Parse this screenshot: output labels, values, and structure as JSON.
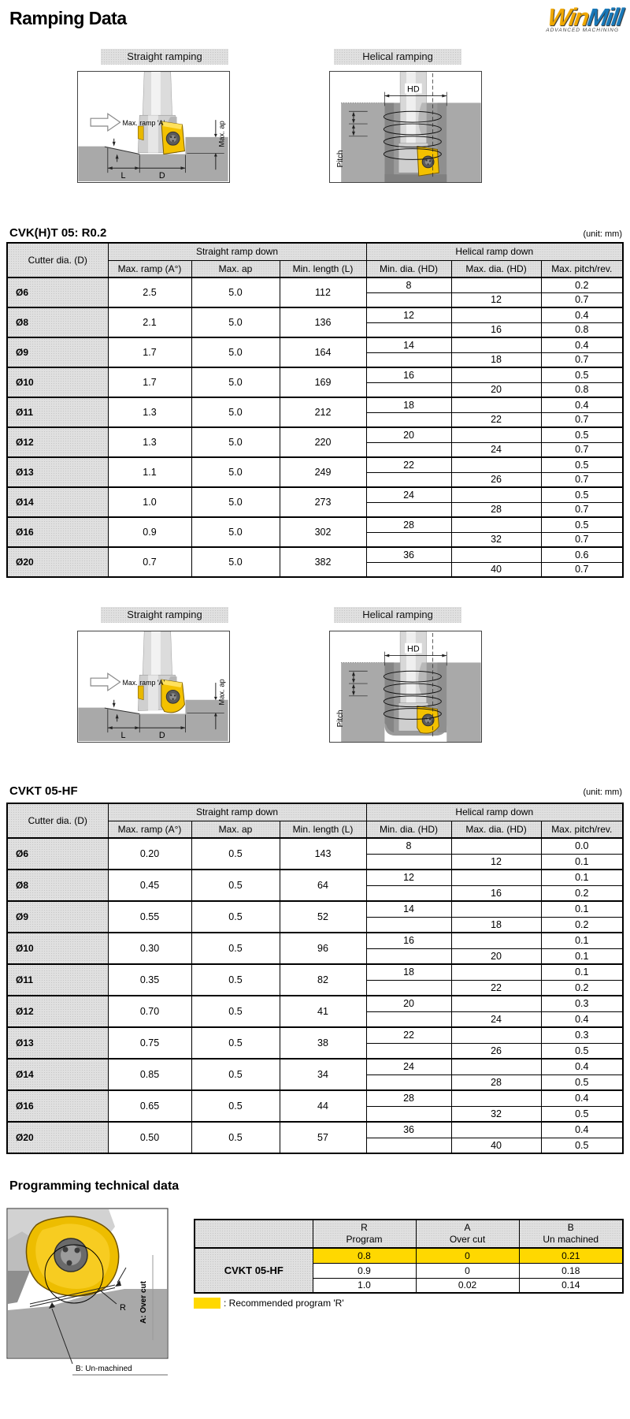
{
  "page": {
    "title": "Ramping Data",
    "logo": {
      "win": "Win",
      "mill": "Mill",
      "tagline": "ADVANCED MACHINING"
    }
  },
  "sections": {
    "straight_label": "Straight ramping",
    "helical_label": "Helical ramping"
  },
  "diagram": {
    "max_ramp": "Max. ramp 'A'",
    "max_ap": "Max. ap",
    "l": "L",
    "d": "D",
    "hd": "HD",
    "pitch": "Pitch"
  },
  "table1": {
    "title": "CVK(H)T 05: R0.2",
    "unit": "(unit: mm)",
    "headers": {
      "cutter_dia": "Cutter dia. (D)",
      "straight_group": "Straight ramp down",
      "helical_group": "Helical ramp down",
      "cols": [
        "Max. ramp (A°)",
        "Max. ap",
        "Min. length (L)",
        "Min. dia. (HD)",
        "Max. dia. (HD)",
        "Max. pitch/rev."
      ]
    },
    "rows": [
      {
        "dia": "Ø6",
        "max_ramp": "2.5",
        "max_ap": "5.0",
        "min_length": "112",
        "min_dia": "8",
        "max_dia": "12",
        "pitch_top": "0.2",
        "pitch_bottom": "0.7"
      },
      {
        "dia": "Ø8",
        "max_ramp": "2.1",
        "max_ap": "5.0",
        "min_length": "136",
        "min_dia": "12",
        "max_dia": "16",
        "pitch_top": "0.4",
        "pitch_bottom": "0.8"
      },
      {
        "dia": "Ø9",
        "max_ramp": "1.7",
        "max_ap": "5.0",
        "min_length": "164",
        "min_dia": "14",
        "max_dia": "18",
        "pitch_top": "0.4",
        "pitch_bottom": "0.7"
      },
      {
        "dia": "Ø10",
        "max_ramp": "1.7",
        "max_ap": "5.0",
        "min_length": "169",
        "min_dia": "16",
        "max_dia": "20",
        "pitch_top": "0.5",
        "pitch_bottom": "0.8"
      },
      {
        "dia": "Ø11",
        "max_ramp": "1.3",
        "max_ap": "5.0",
        "min_length": "212",
        "min_dia": "18",
        "max_dia": "22",
        "pitch_top": "0.4",
        "pitch_bottom": "0.7"
      },
      {
        "dia": "Ø12",
        "max_ramp": "1.3",
        "max_ap": "5.0",
        "min_length": "220",
        "min_dia": "20",
        "max_dia": "24",
        "pitch_top": "0.5",
        "pitch_bottom": "0.7"
      },
      {
        "dia": "Ø13",
        "max_ramp": "1.1",
        "max_ap": "5.0",
        "min_length": "249",
        "min_dia": "22",
        "max_dia": "26",
        "pitch_top": "0.5",
        "pitch_bottom": "0.7"
      },
      {
        "dia": "Ø14",
        "max_ramp": "1.0",
        "max_ap": "5.0",
        "min_length": "273",
        "min_dia": "24",
        "max_dia": "28",
        "pitch_top": "0.5",
        "pitch_bottom": "0.7"
      },
      {
        "dia": "Ø16",
        "max_ramp": "0.9",
        "max_ap": "5.0",
        "min_length": "302",
        "min_dia": "28",
        "max_dia": "32",
        "pitch_top": "0.5",
        "pitch_bottom": "0.7"
      },
      {
        "dia": "Ø20",
        "max_ramp": "0.7",
        "max_ap": "5.0",
        "min_length": "382",
        "min_dia": "36",
        "max_dia": "40",
        "pitch_top": "0.6",
        "pitch_bottom": "0.7"
      }
    ]
  },
  "table2": {
    "title": "CVKT 05-HF",
    "unit": "(unit: mm)",
    "headers": {
      "cutter_dia": "Cutter dia. (D)",
      "straight_group": "Straight ramp down",
      "helical_group": "Helical ramp down",
      "cols": [
        "Max. ramp (A°)",
        "Max. ap",
        "Min. length (L)",
        "Min. dia. (HD)",
        "Max. dia. (HD)",
        "Max. pitch/rev."
      ]
    },
    "rows": [
      {
        "dia": "Ø6",
        "max_ramp": "0.20",
        "max_ap": "0.5",
        "min_length": "143",
        "min_dia": "8",
        "max_dia": "12",
        "pitch_top": "0.0",
        "pitch_bottom": "0.1"
      },
      {
        "dia": "Ø8",
        "max_ramp": "0.45",
        "max_ap": "0.5",
        "min_length": "64",
        "min_dia": "12",
        "max_dia": "16",
        "pitch_top": "0.1",
        "pitch_bottom": "0.2"
      },
      {
        "dia": "Ø9",
        "max_ramp": "0.55",
        "max_ap": "0.5",
        "min_length": "52",
        "min_dia": "14",
        "max_dia": "18",
        "pitch_top": "0.1",
        "pitch_bottom": "0.2"
      },
      {
        "dia": "Ø10",
        "max_ramp": "0.30",
        "max_ap": "0.5",
        "min_length": "96",
        "min_dia": "16",
        "max_dia": "20",
        "pitch_top": "0.1",
        "pitch_bottom": "0.1"
      },
      {
        "dia": "Ø11",
        "max_ramp": "0.35",
        "max_ap": "0.5",
        "min_length": "82",
        "min_dia": "18",
        "max_dia": "22",
        "pitch_top": "0.1",
        "pitch_bottom": "0.2"
      },
      {
        "dia": "Ø12",
        "max_ramp": "0.70",
        "max_ap": "0.5",
        "min_length": "41",
        "min_dia": "20",
        "max_dia": "24",
        "pitch_top": "0.3",
        "pitch_bottom": "0.4"
      },
      {
        "dia": "Ø13",
        "max_ramp": "0.75",
        "max_ap": "0.5",
        "min_length": "38",
        "min_dia": "22",
        "max_dia": "26",
        "pitch_top": "0.3",
        "pitch_bottom": "0.5"
      },
      {
        "dia": "Ø14",
        "max_ramp": "0.85",
        "max_ap": "0.5",
        "min_length": "34",
        "min_dia": "24",
        "max_dia": "28",
        "pitch_top": "0.4",
        "pitch_bottom": "0.5"
      },
      {
        "dia": "Ø16",
        "max_ramp": "0.65",
        "max_ap": "0.5",
        "min_length": "44",
        "min_dia": "28",
        "max_dia": "32",
        "pitch_top": "0.4",
        "pitch_bottom": "0.5"
      },
      {
        "dia": "Ø20",
        "max_ramp": "0.50",
        "max_ap": "0.5",
        "min_length": "57",
        "min_dia": "36",
        "max_dia": "40",
        "pitch_top": "0.4",
        "pitch_bottom": "0.5"
      }
    ]
  },
  "programming": {
    "heading": "Programming technical data",
    "table": {
      "headers": [
        {
          "top": "R",
          "bottom": "Program"
        },
        {
          "top": "A",
          "bottom": "Over cut"
        },
        {
          "top": "B",
          "bottom": "Un machined"
        }
      ],
      "row_label": "CVKT 05-HF",
      "rows": [
        [
          "0.8",
          "0",
          "0.21"
        ],
        [
          "0.9",
          "0",
          "0.18"
        ],
        [
          "1.0",
          "0.02",
          "0.14"
        ]
      ],
      "highlight_row": 0
    },
    "legend_text": ": Recommended program 'R'",
    "diagram": {
      "r_label": "R",
      "a_label": "A: Over cut",
      "b_label": "B: Un-machined"
    }
  },
  "colors": {
    "highlight": "#FFD800",
    "accent_red": "#CC1111",
    "logo_gold": "#F0A800",
    "logo_blue": "#1878B8"
  }
}
